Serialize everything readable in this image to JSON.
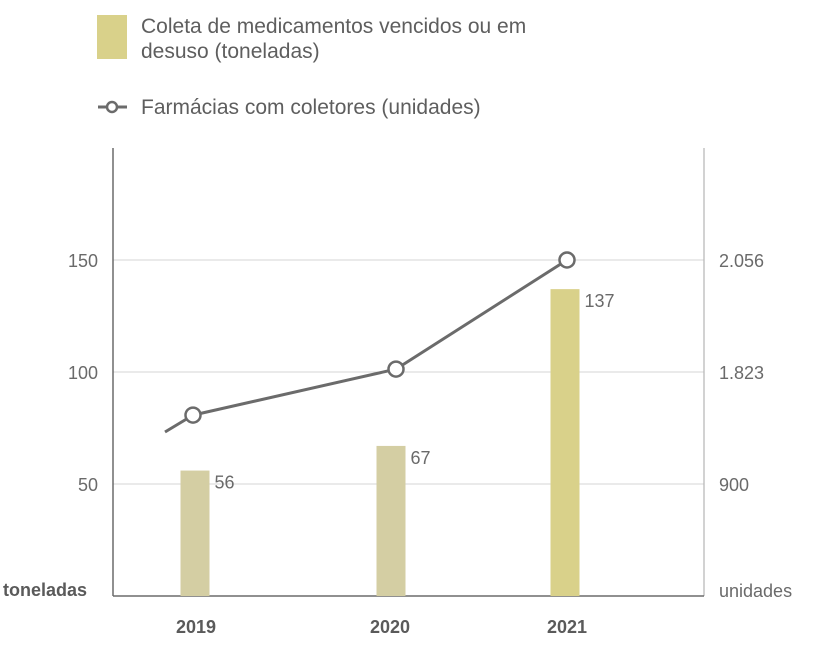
{
  "chart_data": {
    "type": "bar",
    "categories": [
      "2019",
      "2020",
      "2021"
    ],
    "series": [
      {
        "name": "Coleta de medicamentos vencidos ou em desuso (toneladas)",
        "kind": "bar",
        "axis": "left",
        "values": [
          56,
          67,
          137
        ],
        "labels": [
          "56",
          "67",
          "137"
        ],
        "colors": [
          "#d4cea3",
          "#d4cea3",
          "#d9d18a"
        ]
      },
      {
        "name": "Farmácias com coletores (unidades)",
        "kind": "line",
        "axis": "right",
        "values": [
          1476,
          1831,
          2056
        ],
        "color": "#6b6b6b"
      }
    ],
    "left_axis": {
      "label": "toneladas",
      "ticks": [
        50,
        100,
        150
      ],
      "tick_labels": [
        "50",
        "100",
        "150"
      ],
      "range": [
        0,
        200
      ]
    },
    "right_axis": {
      "label": "unidades",
      "tick_labels": [
        "900",
        "1.823",
        "2.056"
      ]
    },
    "legend_lines": [
      [
        "Coleta de medicamentos vencidos ou em",
        "desuso (toneladas)"
      ],
      [
        "Farmácias com coletores (unidades)"
      ]
    ],
    "legend_position": "top-left",
    "grid": true,
    "colors": {
      "bar": "#d4cea3",
      "bar_highlight": "#d9d18a",
      "legend_swatch": "#d9d18a",
      "line": "#6b6b6b",
      "grid": "#d6d6d6",
      "axis": "#6b6b6b"
    }
  }
}
